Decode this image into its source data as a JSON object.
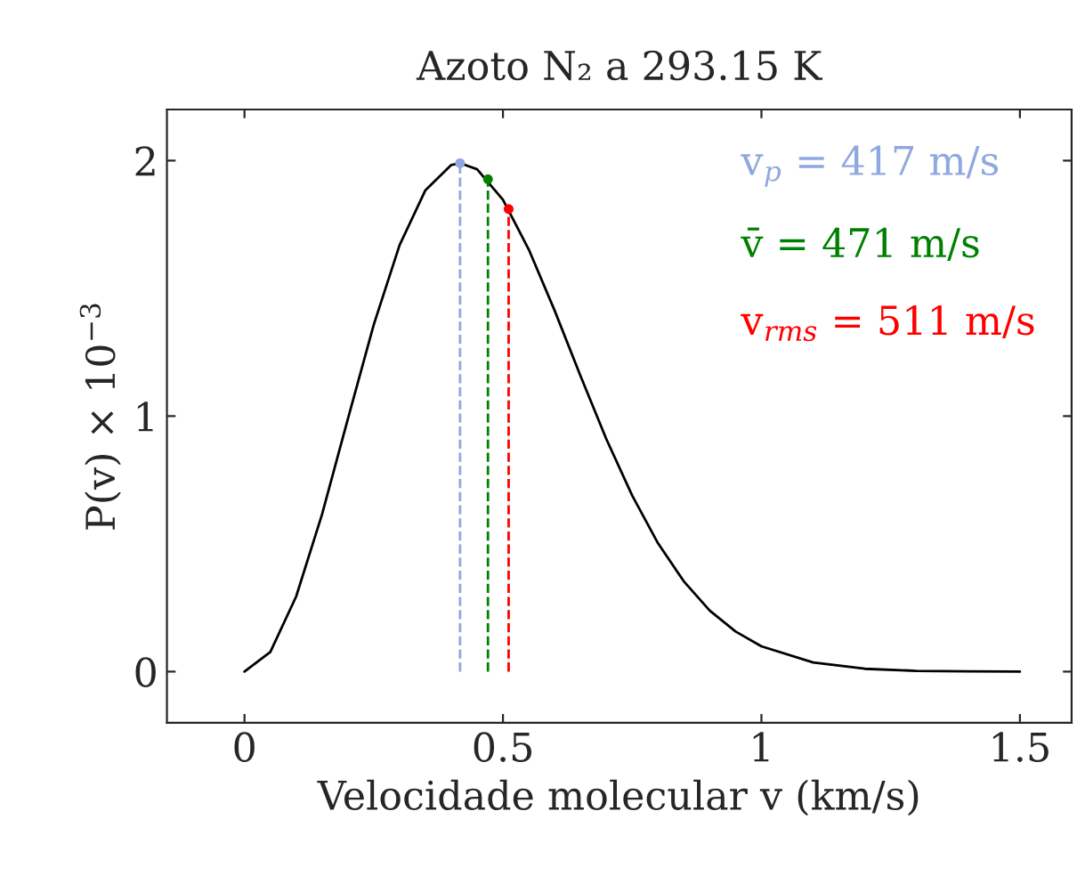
{
  "chart_data": {
    "type": "line",
    "title": "Azoto N₂ a 293.15 K",
    "xlabel": "Velocidade molecular v (km/s)",
    "ylabel": "P(v) × 10$^{−3}$",
    "xlim": [
      -0.15,
      1.6
    ],
    "ylim": [
      -0.2,
      2.2
    ],
    "xticks": [
      0,
      0.5,
      1,
      1.5
    ],
    "yticks": [
      0,
      1,
      2
    ],
    "grid": false,
    "legend": "top right",
    "series": [
      {
        "color": "#000000",
        "marker": "none",
        "line_style": "solid",
        "x": [
          0,
          0.05,
          0.1,
          0.15,
          0.2,
          0.25,
          0.3,
          0.35,
          0.4,
          0.417,
          0.45,
          0.5,
          0.55,
          0.6,
          0.65,
          0.7,
          0.75,
          0.8,
          0.85,
          0.9,
          0.95,
          1.0,
          1.1,
          1.2,
          1.3,
          1.4,
          1.5
        ],
        "values": [
          0,
          0.077,
          0.294,
          0.615,
          0.989,
          1.357,
          1.669,
          1.884,
          1.983,
          1.99,
          1.966,
          1.847,
          1.652,
          1.413,
          1.157,
          0.91,
          0.689,
          0.502,
          0.353,
          0.239,
          0.157,
          0.099,
          0.036,
          0.011,
          0.003,
          0.001,
          0
        ]
      },
      {
        "type": "lollipop",
        "name": "v$_{p}$ = 417 m/s",
        "color": "#8fa8e0",
        "marker": "circle",
        "line_style": "dashed",
        "x": [
          0.417
        ],
        "values": [
          1.99
        ]
      },
      {
        "type": "lollipop",
        "name": "v̄ = 471 m/s",
        "color": "#008000",
        "marker": "circle",
        "line_style": "dashed",
        "x": [
          0.471
        ],
        "values": [
          1.927
        ]
      },
      {
        "type": "lollipop",
        "name": "v$_{rms}$ = 511 m/s",
        "color": "#ff0000",
        "marker": "circle",
        "line_style": "dashed",
        "x": [
          0.511
        ],
        "values": [
          1.81
        ]
      }
    ]
  }
}
